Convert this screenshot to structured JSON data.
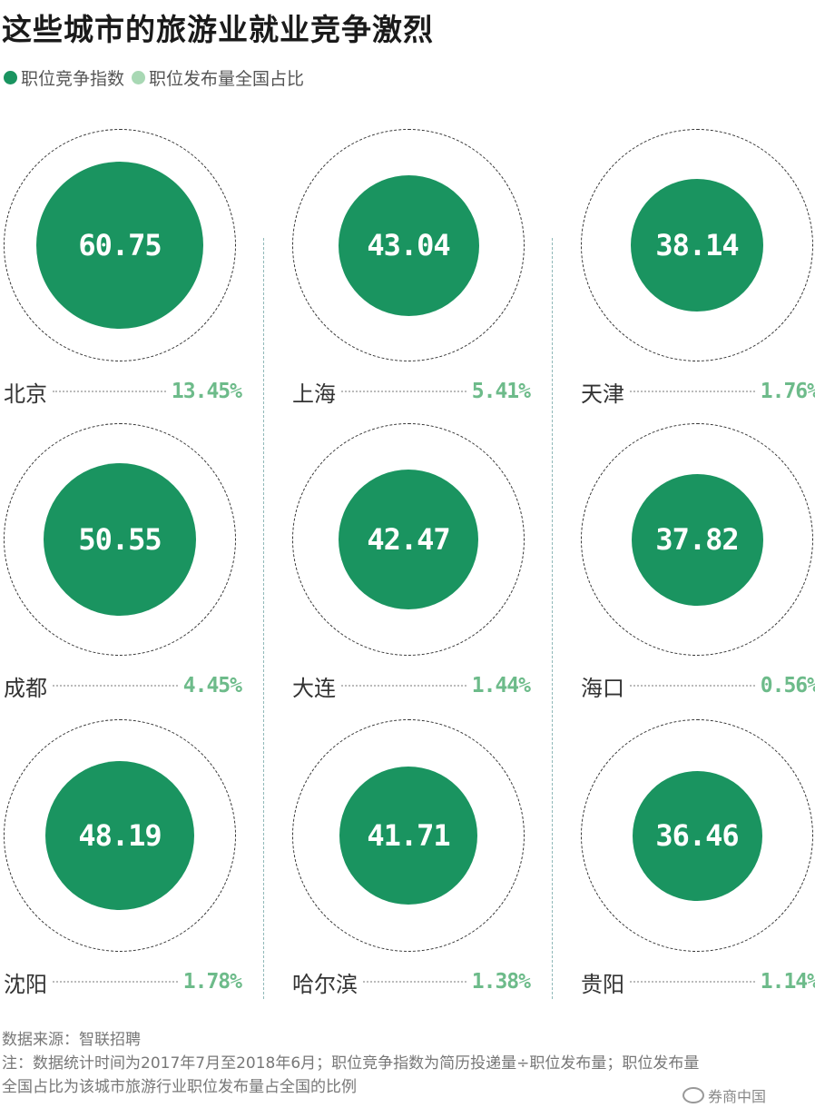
{
  "title": "这些城市的旅游业就业竞争激烈",
  "legend": [
    {
      "label": "职位竞争指数",
      "color": "#1a9460"
    },
    {
      "label": "职位发布量全国占比",
      "color": "#a8d8b4"
    }
  ],
  "chart_data": {
    "type": "bubble-grid",
    "series": [
      {
        "name": "职位竞争指数",
        "color": "#1a9460"
      },
      {
        "name": "职位发布量全国占比",
        "color": "#6dbb8a"
      }
    ],
    "items": [
      {
        "city": "北京",
        "index": 60.75,
        "share": "13.45%"
      },
      {
        "city": "上海",
        "index": 43.04,
        "share": "5.41%"
      },
      {
        "city": "天津",
        "index": 38.14,
        "share": "1.76%"
      },
      {
        "city": "成都",
        "index": 50.55,
        "share": "4.45%"
      },
      {
        "city": "大连",
        "index": 42.47,
        "share": "1.44%"
      },
      {
        "city": "海口",
        "index": 37.82,
        "share": "0.56%"
      },
      {
        "city": "沈阳",
        "index": 48.19,
        "share": "1.78%"
      },
      {
        "city": "哈尔滨",
        "index": 41.71,
        "share": "1.38%"
      },
      {
        "city": "贵阳",
        "index": 36.46,
        "share": "1.14%"
      }
    ]
  },
  "footer": {
    "source": "数据来源：智联招聘",
    "note_line1": "注：数据统计时间为2017年7月至2018年6月；职位竞争指数为简历投递量÷职位发布量；职位发布量",
    "note_line2": "全国占比为该城市旅游行业职位发布量占全国的比例"
  },
  "watermark": "券商中国"
}
